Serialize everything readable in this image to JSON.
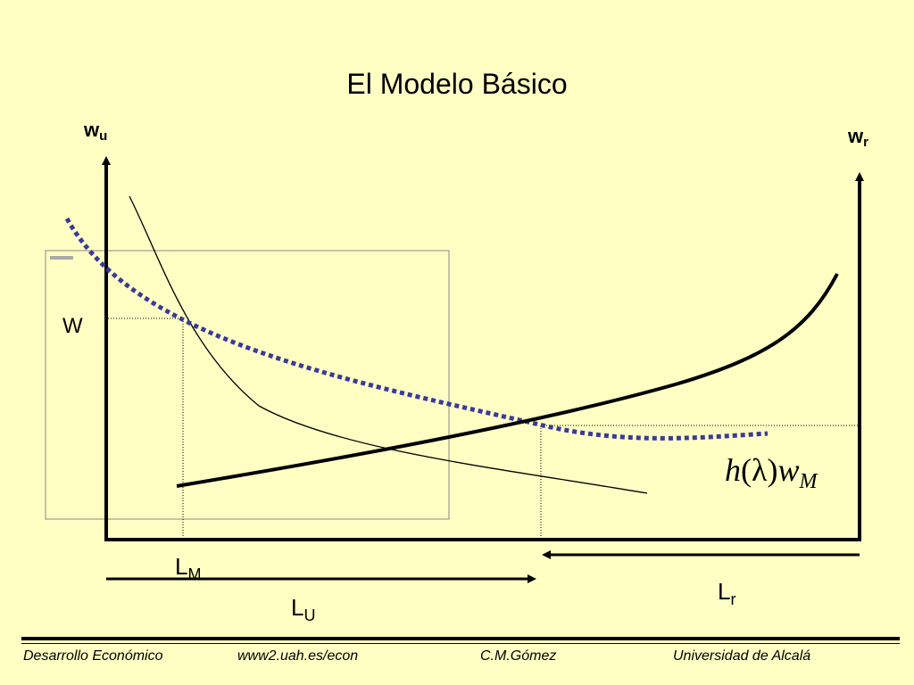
{
  "title": "El Modelo Básico",
  "axes": {
    "left": {
      "main": "w",
      "sub": "u"
    },
    "right": {
      "main": "w",
      "sub": "r"
    }
  },
  "labels": {
    "W": "W",
    "LM": {
      "main": "L",
      "sub": "M"
    },
    "LU": {
      "main": "L",
      "sub": "U"
    },
    "Lr": {
      "main": "L",
      "sub": "r"
    }
  },
  "formula": {
    "h": "h",
    "open": "(",
    "lambda": "λ",
    "close": ")",
    "w": "w",
    "sub": "M"
  },
  "footer": {
    "course": "Desarrollo Económico",
    "url": "www2.uah.es/econ",
    "author": "C.M.Gómez",
    "university": "Universidad de Alcalá"
  },
  "colors": {
    "background": "#FFFFC4",
    "dotted_curve": "#3A3A9A",
    "line": "#000000"
  }
}
